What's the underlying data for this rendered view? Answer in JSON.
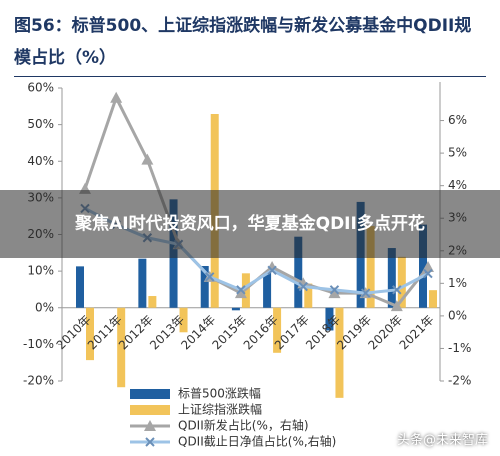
{
  "chart_data": {
    "type": "bar-line",
    "title": "图56：标普500、上证综指涨跌幅与新发公募基金中QDII规模占比（%）",
    "categories": [
      "2010年",
      "2011年",
      "2012年",
      "2013年",
      "2014年",
      "2015年",
      "2016年",
      "2017年",
      "2018年",
      "2019年",
      "2020年",
      "2021年"
    ],
    "series": [
      {
        "name": "标普500涨跌幅",
        "kind": "bar",
        "color": "#1f5fa0",
        "values": [
          11.3,
          0,
          13.4,
          29.6,
          11.4,
          -0.7,
          9.5,
          19.4,
          -6.2,
          28.9,
          16.3,
          22.7
        ]
      },
      {
        "name": "上证综指涨跌幅",
        "kind": "bar",
        "color": "#f2c45a",
        "values": [
          -14.3,
          -21.7,
          3.2,
          -6.7,
          52.9,
          9.4,
          -12.3,
          6.6,
          -24.6,
          22.3,
          13.9,
          4.8
        ]
      },
      {
        "name": "QDII新发占比(%，右轴)",
        "kind": "line",
        "marker": "triangle",
        "axis": "y2",
        "color": "#a6a6a6",
        "values": [
          3.9,
          6.7,
          4.8,
          2.2,
          1.2,
          0.7,
          1.5,
          1.0,
          0.7,
          0.7,
          0.3,
          1.5
        ]
      },
      {
        "name": "QDII截止日净值占比(%,右轴)",
        "kind": "line",
        "marker": "x",
        "axis": "y2",
        "color": "#9dc3e6",
        "values": [
          3.3,
          2.8,
          2.4,
          2.2,
          1.2,
          0.8,
          1.4,
          0.9,
          0.8,
          0.7,
          0.8,
          1.3
        ]
      }
    ],
    "ylim": [
      -20,
      60
    ],
    "yticks": [
      {
        "value": -20,
        "label": "-20%"
      },
      {
        "value": -10,
        "label": "-10%"
      },
      {
        "value": 0,
        "label": "0%"
      },
      {
        "value": 10,
        "label": "10%"
      },
      {
        "value": 20,
        "label": "20%"
      },
      {
        "value": 30,
        "label": "30%"
      },
      {
        "value": 40,
        "label": "40%"
      },
      {
        "value": 50,
        "label": "50%"
      },
      {
        "value": 60,
        "label": "60%"
      }
    ],
    "y2lim": [
      -2,
      7
    ],
    "y2ticks": [
      {
        "value": -2,
        "label": "-2%"
      },
      {
        "value": -1,
        "label": "-1%"
      },
      {
        "value": 0,
        "label": "0%"
      },
      {
        "value": 1,
        "label": "1%"
      },
      {
        "value": 2,
        "label": "2%"
      },
      {
        "value": 3,
        "label": "3%"
      },
      {
        "value": 4,
        "label": "4%"
      },
      {
        "value": 5,
        "label": "5%"
      },
      {
        "value": 6,
        "label": "6%"
      }
    ],
    "grid": false
  },
  "overlay": {
    "headline": "聚焦AI时代投资风口，华夏基金QDII多点开花",
    "watermark": "头条@未来智库"
  }
}
